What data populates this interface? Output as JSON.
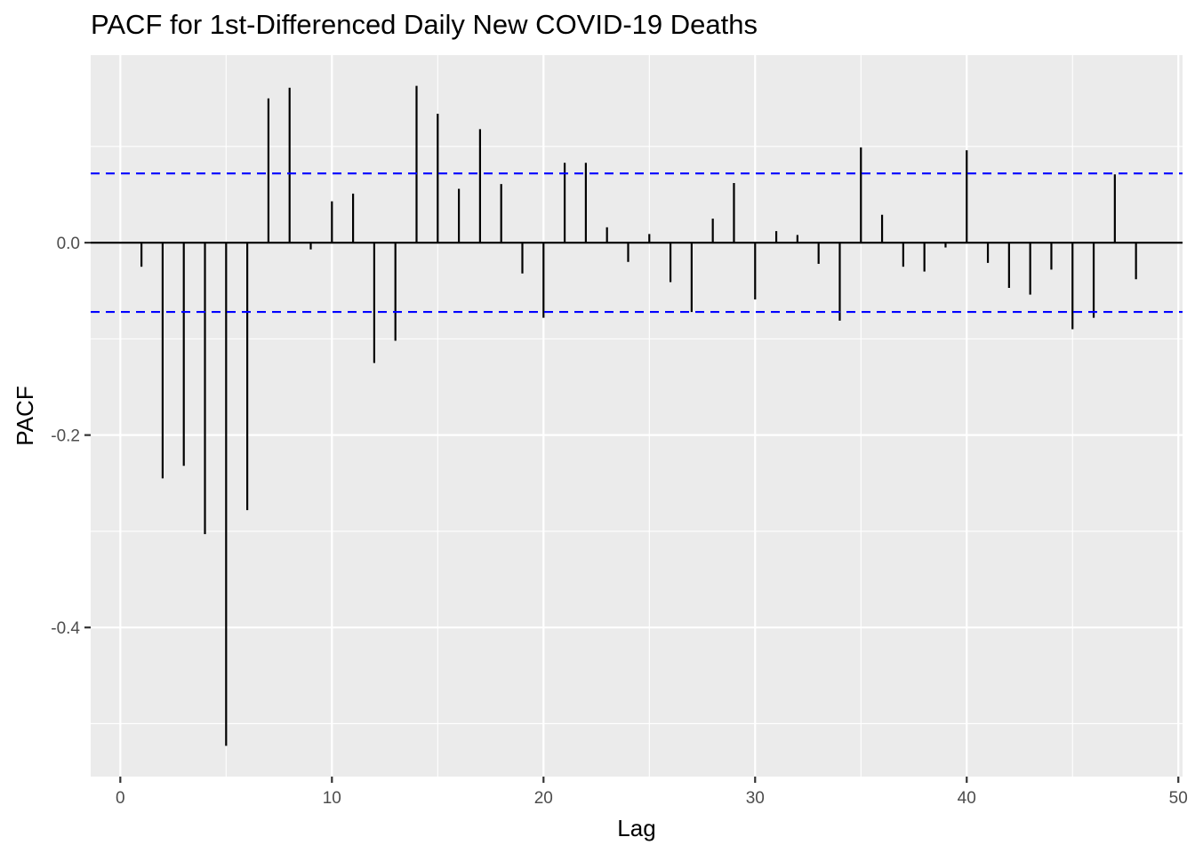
{
  "chart_data": {
    "type": "bar",
    "title": "PACF for 1st-Differenced Daily New COVID-19 Deaths",
    "xlabel": "Lag",
    "ylabel": "PACF",
    "xlim": [
      -1.4,
      50.2
    ],
    "ylim": [
      -0.555,
      0.195
    ],
    "x_ticks": [
      0,
      10,
      20,
      30,
      40,
      50
    ],
    "x_tick_labels": [
      "0",
      "10",
      "20",
      "30",
      "40",
      "50"
    ],
    "y_ticks": [
      0.0,
      -0.2,
      -0.4
    ],
    "y_tick_labels": [
      "0.0",
      "-0.2",
      "-0.4"
    ],
    "grid": true,
    "ci_bounds": [
      0.072,
      -0.072
    ],
    "ci_color": "#0000ff",
    "bar_color": "#000000",
    "lags": [
      1,
      2,
      3,
      4,
      5,
      6,
      7,
      8,
      9,
      10,
      11,
      12,
      13,
      14,
      15,
      16,
      17,
      18,
      19,
      20,
      21,
      22,
      23,
      24,
      25,
      26,
      27,
      28,
      29,
      30,
      31,
      32,
      33,
      34,
      35,
      36,
      37,
      38,
      39,
      40,
      41,
      42,
      43,
      44,
      45,
      46,
      47,
      48
    ],
    "values": [
      -0.025,
      -0.245,
      -0.232,
      -0.303,
      -0.523,
      -0.278,
      0.15,
      0.161,
      -0.007,
      0.043,
      0.051,
      -0.125,
      -0.102,
      0.163,
      0.134,
      0.056,
      0.118,
      0.061,
      -0.032,
      -0.078,
      0.083,
      0.083,
      0.016,
      -0.02,
      0.009,
      -0.041,
      -0.072,
      0.025,
      0.062,
      -0.059,
      0.012,
      0.008,
      -0.022,
      -0.081,
      0.099,
      0.029,
      -0.025,
      -0.03,
      -0.005,
      0.096,
      -0.021,
      -0.047,
      -0.054,
      -0.028,
      -0.09,
      -0.078,
      0.071,
      -0.038
    ]
  }
}
